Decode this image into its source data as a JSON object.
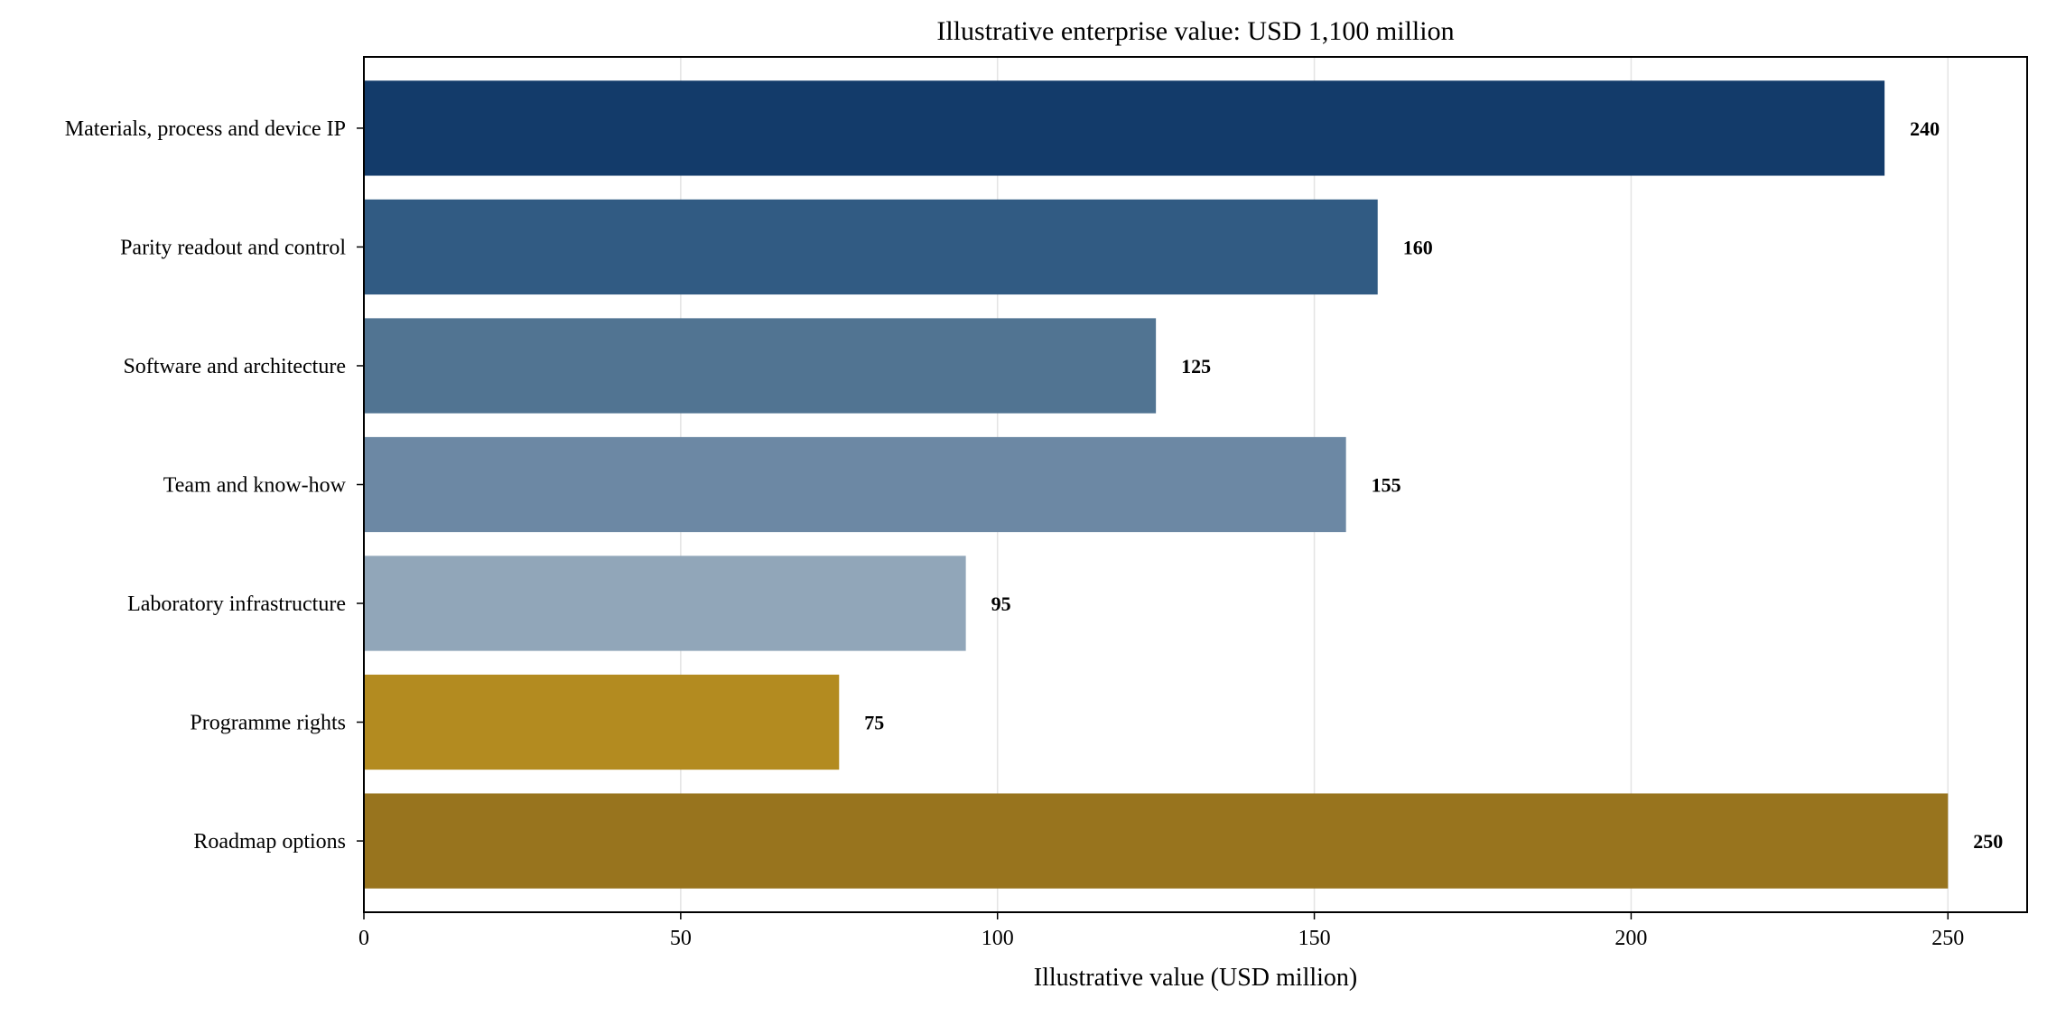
{
  "chart_data": {
    "type": "bar",
    "orientation": "horizontal",
    "title": "Illustrative enterprise value: USD 1,100 million",
    "xlabel": "Illustrative value (USD million)",
    "ylabel": "",
    "categories": [
      "Materials, process and device IP",
      "Parity readout and control",
      "Software and architecture",
      "Team and know-how",
      "Laboratory infrastructure",
      "Programme rights",
      "Roadmap options"
    ],
    "values": [
      240,
      160,
      125,
      155,
      95,
      75,
      250
    ],
    "data_labels": [
      "240",
      "160",
      "125",
      "155",
      "95",
      "75",
      "250"
    ],
    "colors": [
      "#133b6a",
      "#315b83",
      "#517492",
      "#6c88a4",
      "#91a6b9",
      "#b38b20",
      "#98741e"
    ],
    "xlim": [
      0,
      262.5
    ],
    "xticks": [
      0,
      50,
      100,
      150,
      200,
      250
    ],
    "xtick_labels": [
      "0",
      "50",
      "100",
      "150",
      "200",
      "250"
    ],
    "grid": "x",
    "legend": "none"
  }
}
